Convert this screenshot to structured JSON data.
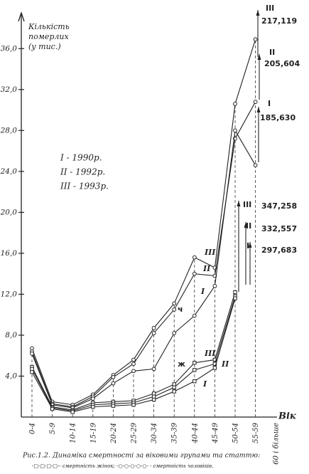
{
  "chart_data": {
    "type": "line",
    "y_label_line1": "Кількість",
    "y_label_line2": "померлих",
    "y_label_line3": "(у тис.)",
    "x_label": "Вік",
    "categories": [
      "0-4",
      "5-9",
      "10-14",
      "15-19",
      "20-24",
      "25-29",
      "30-34",
      "35-39",
      "40-44",
      "45-49",
      "50-54",
      "55-59",
      "60 і більше"
    ],
    "ylim": [
      0,
      38
    ],
    "yticks": [
      {
        "value": 4,
        "label": "4,0"
      },
      {
        "value": 8,
        "label": "8,0"
      },
      {
        "value": 12,
        "label": "12,0"
      },
      {
        "value": 16,
        "label": "16,0"
      },
      {
        "value": 20,
        "label": "20,0"
      },
      {
        "value": 24,
        "label": "24,0"
      },
      {
        "value": 28,
        "label": "28,0"
      },
      {
        "value": 32,
        "label": "32,0"
      },
      {
        "value": 36,
        "label": "36,0"
      }
    ],
    "legend": [
      "І - 1990р.",
      "ІІ - 1992р.",
      "ІІІ - 1993р."
    ],
    "series": [
      {
        "name": "ІІІ",
        "marker": "circle",
        "color": "#222",
        "values": [
          6.7,
          1.5,
          1.2,
          2.2,
          4.1,
          5.6,
          8.7,
          11.1,
          15.6,
          14.6,
          30.6,
          36.9,
          null
        ]
      },
      {
        "name": "ІІ",
        "marker": "circle",
        "color": "#222",
        "values": [
          6.4,
          1.3,
          1.0,
          2.0,
          3.9,
          5.2,
          8.2,
          10.5,
          14.0,
          13.8,
          27.2,
          30.8,
          null
        ]
      },
      {
        "name": "І",
        "marker": "circle",
        "color": "#222",
        "values": [
          6.2,
          1.2,
          0.9,
          1.8,
          3.3,
          4.5,
          4.7,
          8.2,
          9.9,
          12.8,
          28.0,
          24.6,
          null
        ]
      },
      {
        "name": "ІІІ",
        "marker": "square",
        "color": "#222",
        "values": [
          4.9,
          1.0,
          0.7,
          1.4,
          1.5,
          1.6,
          2.3,
          3.2,
          5.3,
          5.6,
          12.2,
          null,
          null
        ]
      },
      {
        "name": "ІІ",
        "marker": "square",
        "color": "#222",
        "values": [
          4.7,
          0.9,
          0.6,
          1.2,
          1.3,
          1.4,
          2.0,
          2.9,
          4.6,
          5.2,
          11.8,
          null,
          null
        ]
      },
      {
        "name": "І",
        "marker": "square",
        "color": "#222",
        "values": [
          4.4,
          0.8,
          0.5,
          1.0,
          1.1,
          1.2,
          1.7,
          2.5,
          3.5,
          4.8,
          11.6,
          null,
          null
        ]
      }
    ],
    "annotations": [
      "ІІІ",
      "217,119",
      "ІІ",
      "205,604",
      "І",
      "185,630",
      "ІІІ",
      "347,258",
      "ІІ",
      "332,557",
      "І",
      "297,683",
      "ч",
      "ж"
    ],
    "caption_line1": "Рис.1.2. Динаміка смертності за віковими групами та статтю:",
    "caption_line2": "-□-□-□-□-- смертність жінок; -○-○-○-○-○- - смертність чоловіків."
  }
}
